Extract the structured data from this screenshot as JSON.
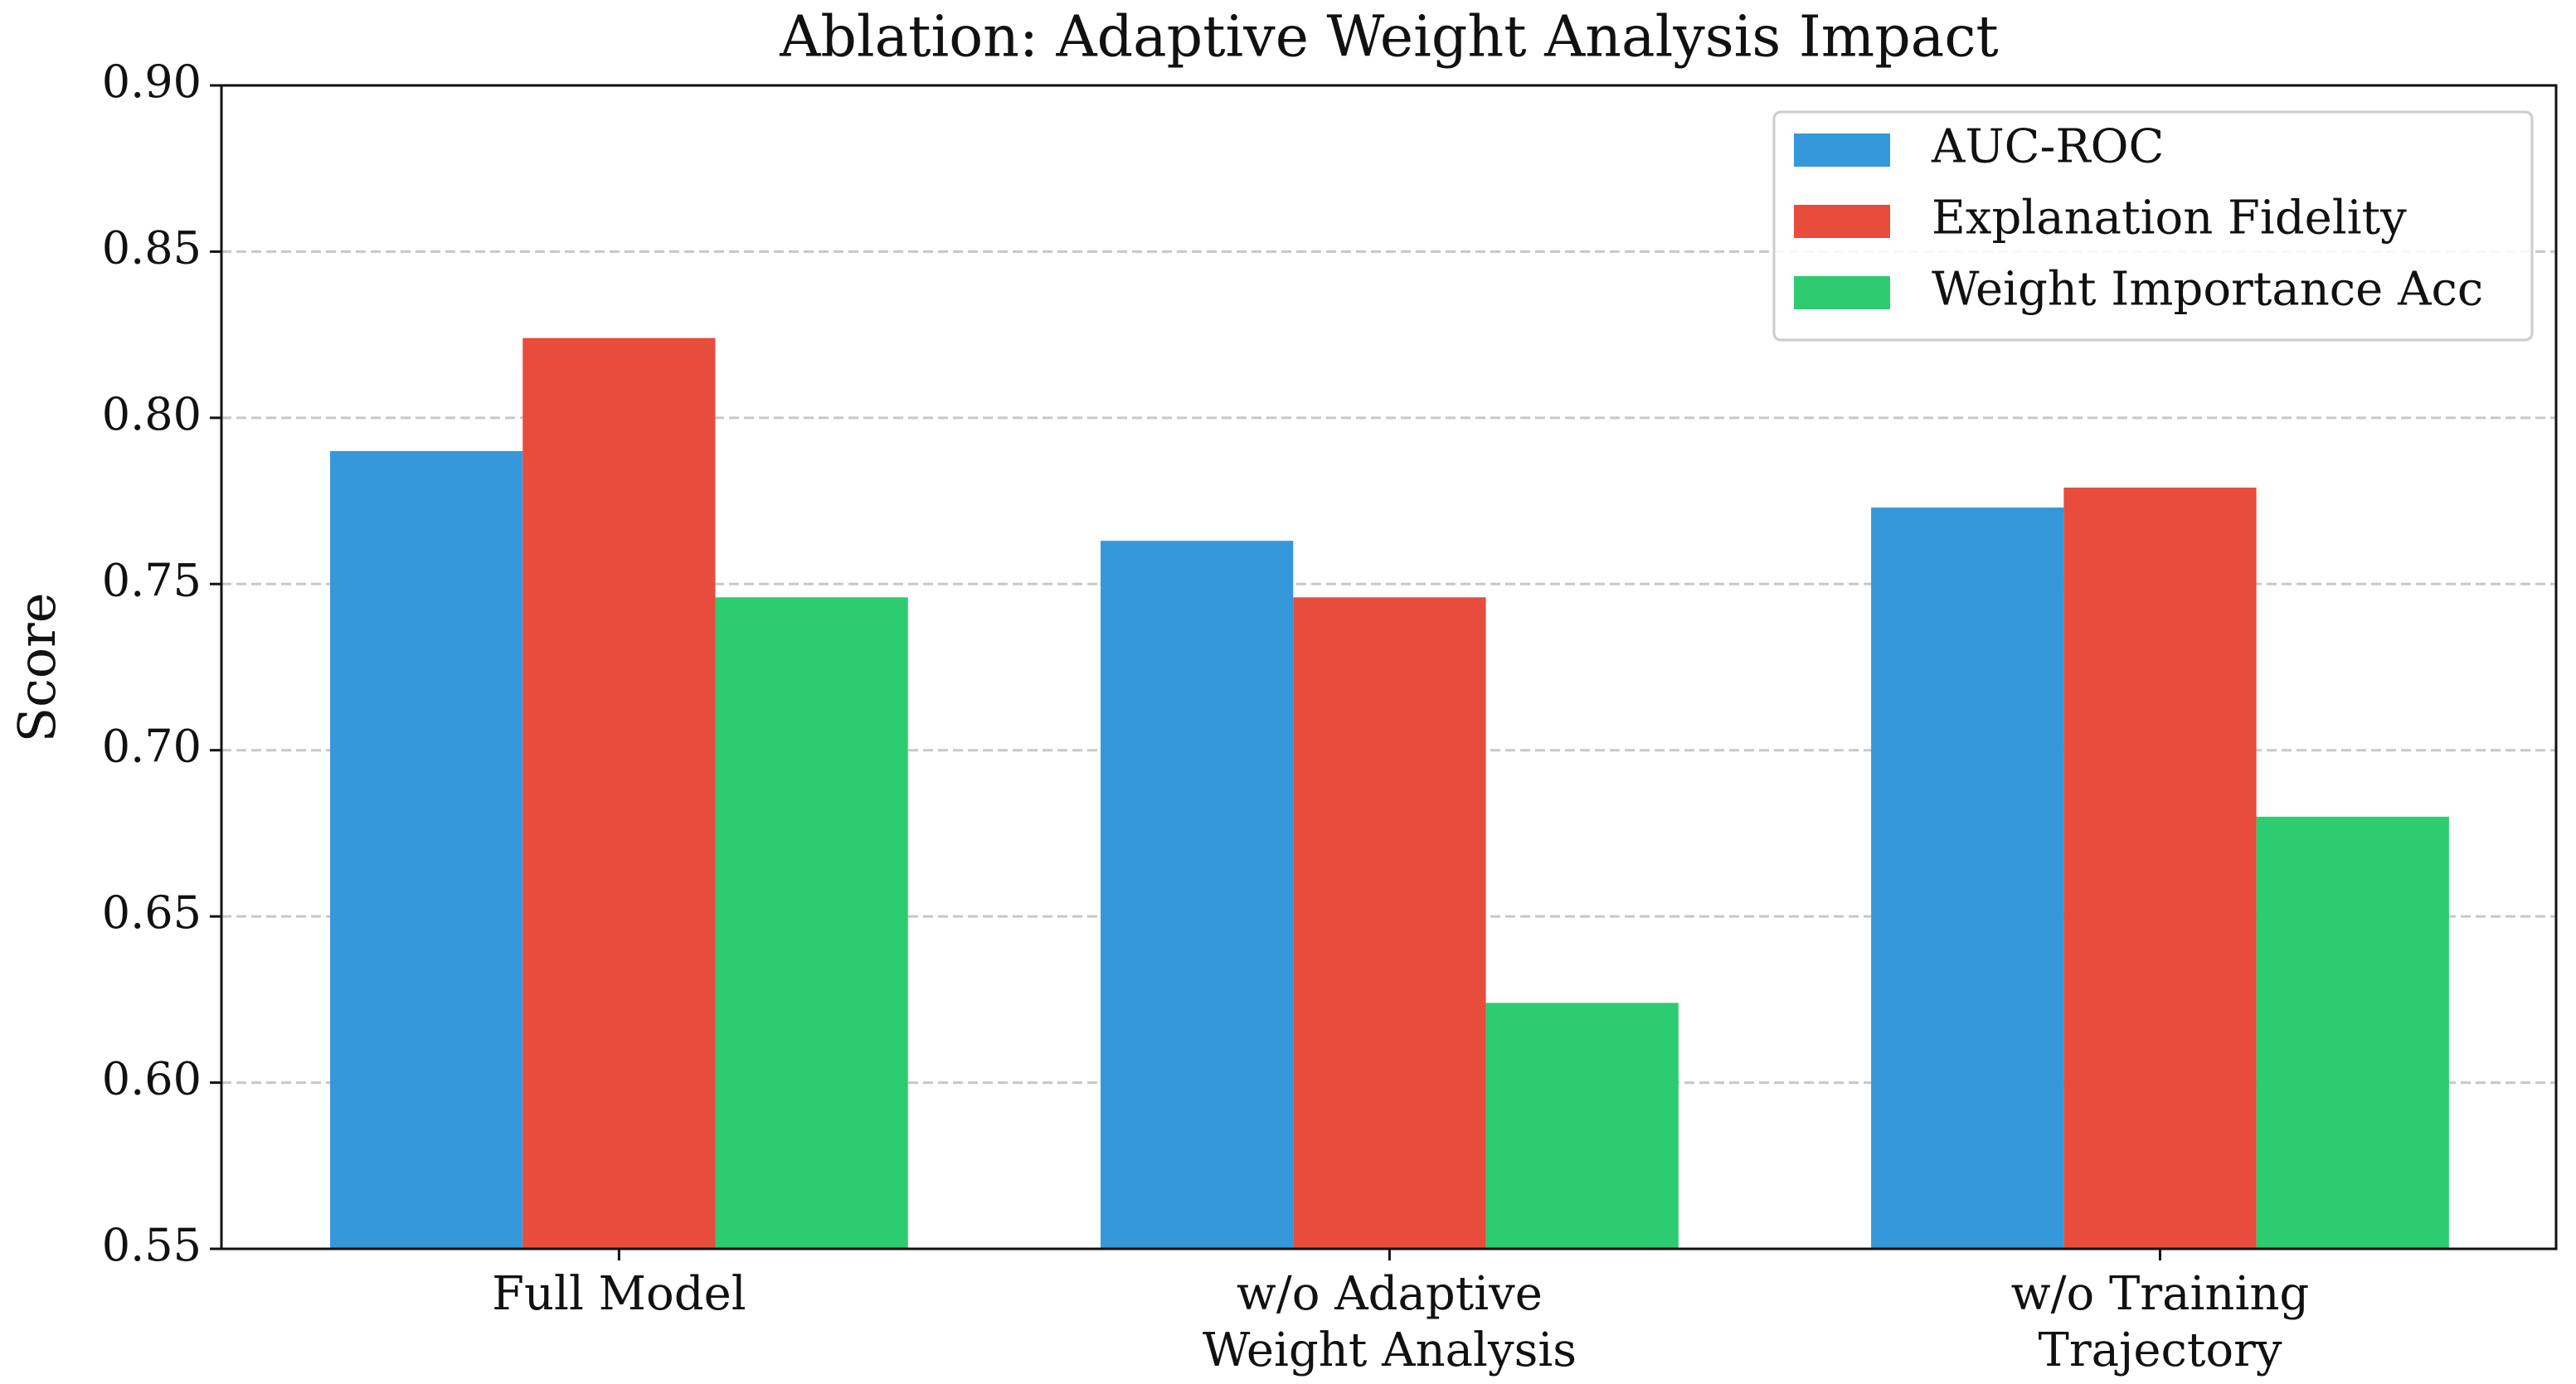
{
  "chart_data": {
    "type": "bar",
    "title": "Ablation: Adaptive Weight Analysis Impact",
    "y_label": "Score",
    "categories": [
      "Full Model",
      "w/o Adaptive\nWeight Analysis",
      "w/o Training\nTrajectory"
    ],
    "series": [
      {
        "name": "AUC-ROC",
        "color": "#3498db",
        "values": [
          0.79,
          0.763,
          0.773
        ]
      },
      {
        "name": "Explanation Fidelity",
        "color": "#e74c3c",
        "values": [
          0.824,
          0.746,
          0.779
        ]
      },
      {
        "name": "Weight Importance Acc",
        "color": "#2ecc71",
        "values": [
          0.746,
          0.624,
          0.68
        ]
      }
    ],
    "ylim": [
      0.55,
      0.9
    ],
    "yticks": [
      {
        "value": 0.55,
        "label": "0.55"
      },
      {
        "value": 0.6,
        "label": "0.60"
      },
      {
        "value": 0.65,
        "label": "0.65"
      },
      {
        "value": 0.7,
        "label": "0.70"
      },
      {
        "value": 0.75,
        "label": "0.75"
      },
      {
        "value": 0.8,
        "label": "0.80"
      },
      {
        "value": 0.85,
        "label": "0.85"
      },
      {
        "value": 0.9,
        "label": "0.90"
      }
    ],
    "grid": true,
    "legend": "upper right"
  }
}
